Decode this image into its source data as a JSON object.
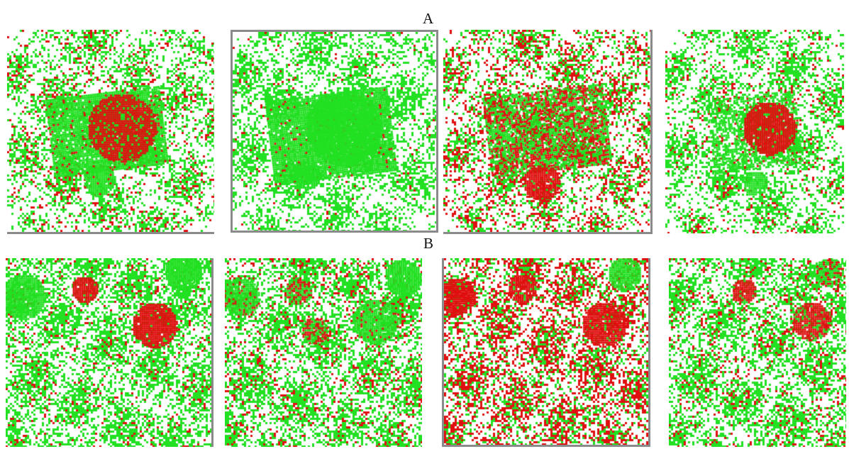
{
  "labels": {
    "top_row": "A",
    "bottom_row": "B"
  },
  "colors": {
    "class_primary": "#22e022",
    "class_secondary": "#e01010",
    "background": "#ffffff",
    "frame": "#8a8a8a"
  },
  "rows": [
    {
      "label": "A",
      "panels": [
        {
          "name": "panel-a1",
          "description_icon": "classification-map",
          "red_share": 0.22,
          "features": [
            "large-green-stadium",
            "red-disc-center",
            "green-small-disc-lower-left"
          ]
        },
        {
          "name": "panel-a2",
          "description_icon": "classification-map",
          "red_share": 0.05,
          "features": [
            "large-green-stadium",
            "green-disc-center"
          ]
        },
        {
          "name": "panel-a3",
          "description_icon": "classification-map",
          "red_share": 0.45,
          "features": [
            "mixed-stadium",
            "red-disc-lower-left"
          ]
        },
        {
          "name": "panel-a4",
          "description_icon": "classification-map",
          "red_share": 0.15,
          "features": [
            "red-disc-center",
            "green-small-disc-lower"
          ]
        }
      ]
    },
    {
      "label": "B",
      "panels": [
        {
          "name": "panel-b1",
          "description_icon": "classification-map",
          "red_share": 0.12,
          "features": [
            "red-disc-top",
            "red-disc-right",
            "green-disc-top-right"
          ]
        },
        {
          "name": "panel-b2",
          "description_icon": "classification-map",
          "red_share": 0.2,
          "features": [
            "mixed-disc-top",
            "green-disc-right",
            "green-disc-top-right"
          ]
        },
        {
          "name": "panel-b3",
          "description_icon": "classification-map",
          "red_share": 0.6,
          "features": [
            "red-disc-right",
            "green-disc-top-right",
            "red-dominant"
          ]
        },
        {
          "name": "panel-b4",
          "description_icon": "classification-map",
          "red_share": 0.2,
          "features": [
            "red-disc-top",
            "red-disc-right"
          ]
        }
      ]
    }
  ]
}
